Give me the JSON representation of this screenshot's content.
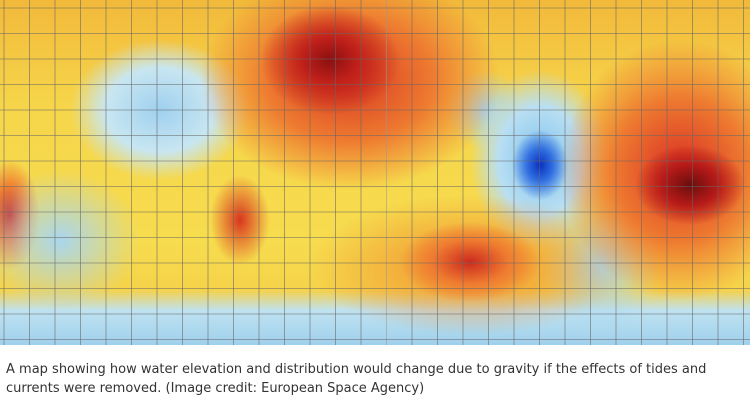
{
  "map": {
    "colors": {
      "high": "#8a1010",
      "mid": "#ee7a30",
      "neutral": "#f7dc4e",
      "low": "#9fd0ef",
      "lowest": "#0a2fc0"
    }
  },
  "caption": "A map showing how water elevation and distribution would change due to gravity if the effects of tides and currents were removed. (Image credit: European Space Agency)"
}
